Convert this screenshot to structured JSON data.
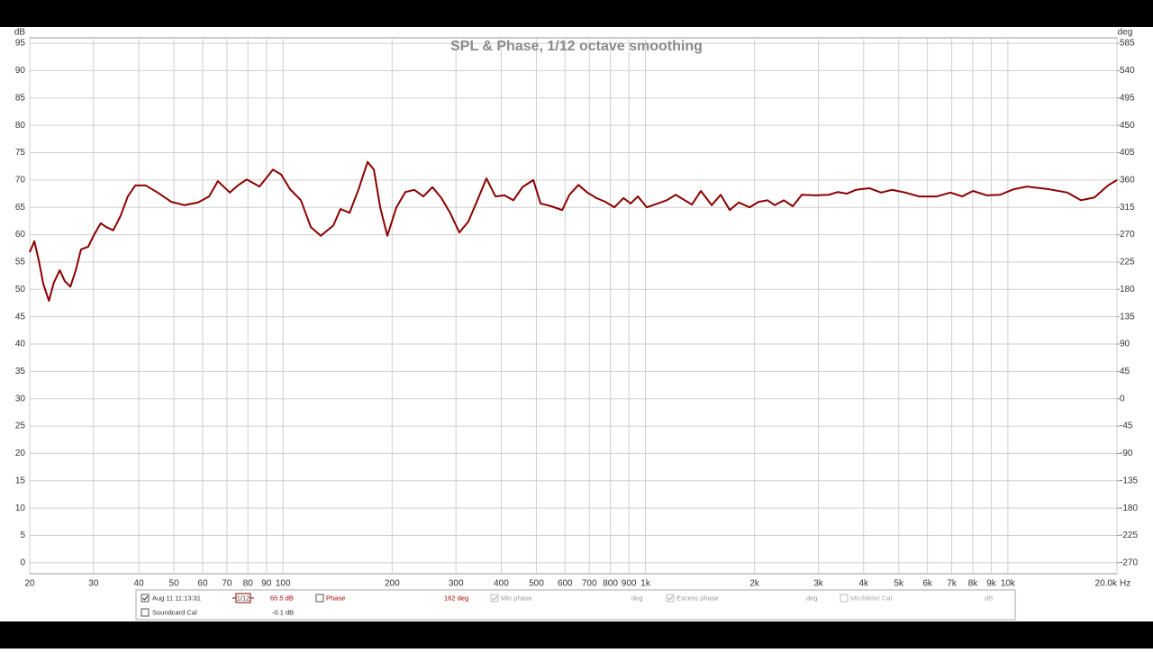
{
  "chart_data": {
    "type": "line",
    "title": "SPL & Phase, 1/12 octave smoothing",
    "x_unit": "Hz",
    "y_unit": "dB",
    "y2_unit": "deg",
    "log_x": true,
    "grid": true,
    "xlim": [
      20,
      20000
    ],
    "xticks": [
      20,
      30,
      40,
      50,
      60,
      70,
      80,
      90,
      100,
      200,
      300,
      400,
      500,
      600,
      700,
      800,
      900,
      {
        "value": 1000,
        "label": "1k"
      },
      {
        "value": 2000,
        "label": "2k"
      },
      {
        "value": 3000,
        "label": "3k"
      },
      {
        "value": 4000,
        "label": "4k"
      },
      {
        "value": 5000,
        "label": "5k"
      },
      {
        "value": 6000,
        "label": "6k"
      },
      {
        "value": 7000,
        "label": "7k"
      },
      {
        "value": 8000,
        "label": "8k"
      },
      {
        "value": 9000,
        "label": "9k"
      },
      {
        "value": 10000,
        "label": "10k"
      },
      {
        "value": 20000,
        "label": "20.0k"
      }
    ],
    "ylim": [
      -2,
      96
    ],
    "yticks": [
      0,
      5,
      10,
      15,
      20,
      25,
      30,
      35,
      40,
      45,
      50,
      55,
      60,
      65,
      70,
      75,
      80,
      85,
      90,
      95
    ],
    "y2lim": [
      -288,
      594
    ],
    "y2ticks": [
      -270,
      -225,
      -180,
      -135,
      -90,
      -45,
      0,
      45,
      90,
      135,
      180,
      225,
      270,
      315,
      360,
      405,
      450,
      495,
      540,
      585
    ],
    "x": [
      20,
      20.6,
      21.2,
      21.8,
      22.6,
      23.3,
      24.2,
      25.0,
      25.9,
      26.8,
      27.7,
      29.0,
      30.0,
      31.4,
      32.5,
      34.0,
      35.6,
      37.3,
      39.1,
      41.8,
      45.1,
      49.2,
      53.5,
      58.3,
      62.5,
      66.1,
      71.3,
      75.0,
      79.4,
      86.1,
      93.8,
      98.8,
      104.6,
      112,
      119.3,
      127.1,
      137.7,
      144.1,
      152.6,
      161.6,
      171.1,
      178.1,
      185.4,
      194.0,
      205.5,
      217.5,
      230.3,
      243.9,
      258.3,
      273.5,
      289.6,
      306.6,
      324.6,
      343.8,
      364.1,
      385.5,
      408.3,
      432.2,
      457.8,
      490.5,
      513.5,
      550.0,
      589.3,
      616.9,
      653.2,
      691.6,
      732.3,
      775.4,
      821.0,
      869.6,
      910.3,
      953.0,
      1009,
      1081,
      1145,
      1212,
      1283,
      1343,
      1422,
      1523,
      1613,
      1708,
      1809,
      1937,
      2051,
      2172,
      2274,
      2408,
      2550,
      2700,
      2942,
      3206,
      3395,
      3594,
      3806,
      4147,
      4468,
      4787,
      5216,
      5683,
      6372,
      6943,
      7480,
      8012,
      8730,
      9512,
      10363,
      11292,
      13025,
      14605,
      15912,
      17337,
      18892,
      20000
    ],
    "series": [
      {
        "name": "Aug 11 11:13:31",
        "color": "#8b0000",
        "values": [
          56.8,
          58.8,
          55.2,
          51.0,
          47.9,
          51.2,
          53.5,
          51.5,
          50.5,
          53.5,
          57.3,
          57.8,
          59.8,
          62.1,
          61.4,
          60.8,
          63.4,
          67.0,
          69.0,
          69.0,
          67.7,
          66.0,
          65.4,
          65.9,
          67.0,
          69.8,
          67.7,
          69.0,
          70.1,
          68.8,
          71.9,
          71.0,
          68.3,
          66.3,
          61.4,
          59.8,
          61.7,
          64.7,
          64.0,
          68.3,
          73.3,
          71.9,
          65.0,
          59.8,
          65.0,
          67.8,
          68.2,
          67.0,
          68.7,
          66.7,
          63.9,
          60.4,
          62.4,
          66.3,
          70.3,
          67.0,
          67.2,
          66.3,
          68.7,
          70.0,
          65.7,
          65.2,
          64.5,
          67.3,
          69.1,
          67.7,
          66.7,
          66.0,
          65.0,
          66.7,
          65.7,
          67.0,
          65.0,
          65.7,
          66.3,
          67.3,
          66.3,
          65.5,
          68.0,
          65.4,
          67.3,
          64.5,
          65.9,
          65.0,
          66.0,
          66.3,
          65.4,
          66.3,
          65.2,
          67.3,
          67.2,
          67.3,
          67.8,
          67.5,
          68.2,
          68.5,
          67.7,
          68.2,
          67.7,
          67.0,
          67.0,
          67.7,
          67.0,
          68.0,
          67.2,
          67.3,
          68.3,
          68.8,
          68.3,
          67.7,
          66.3,
          66.8,
          69.0,
          70.0
        ]
      }
    ]
  },
  "legend_panel": {
    "smoothing": "1/12",
    "spl_reading": "65.5 dB",
    "phase": "Phase",
    "phase_reading": "162 deg",
    "min_phase": "Min phase",
    "min_phase_unit": "deg",
    "excess_phase": "Excess phase",
    "excess_phase_unit": "deg",
    "mic_cal": "Mic/Meter Cal",
    "mic_cal_unit": "dB",
    "soundcard_cal": "Soundcard Cal",
    "soundcard_reading": "-0.1 dB"
  }
}
